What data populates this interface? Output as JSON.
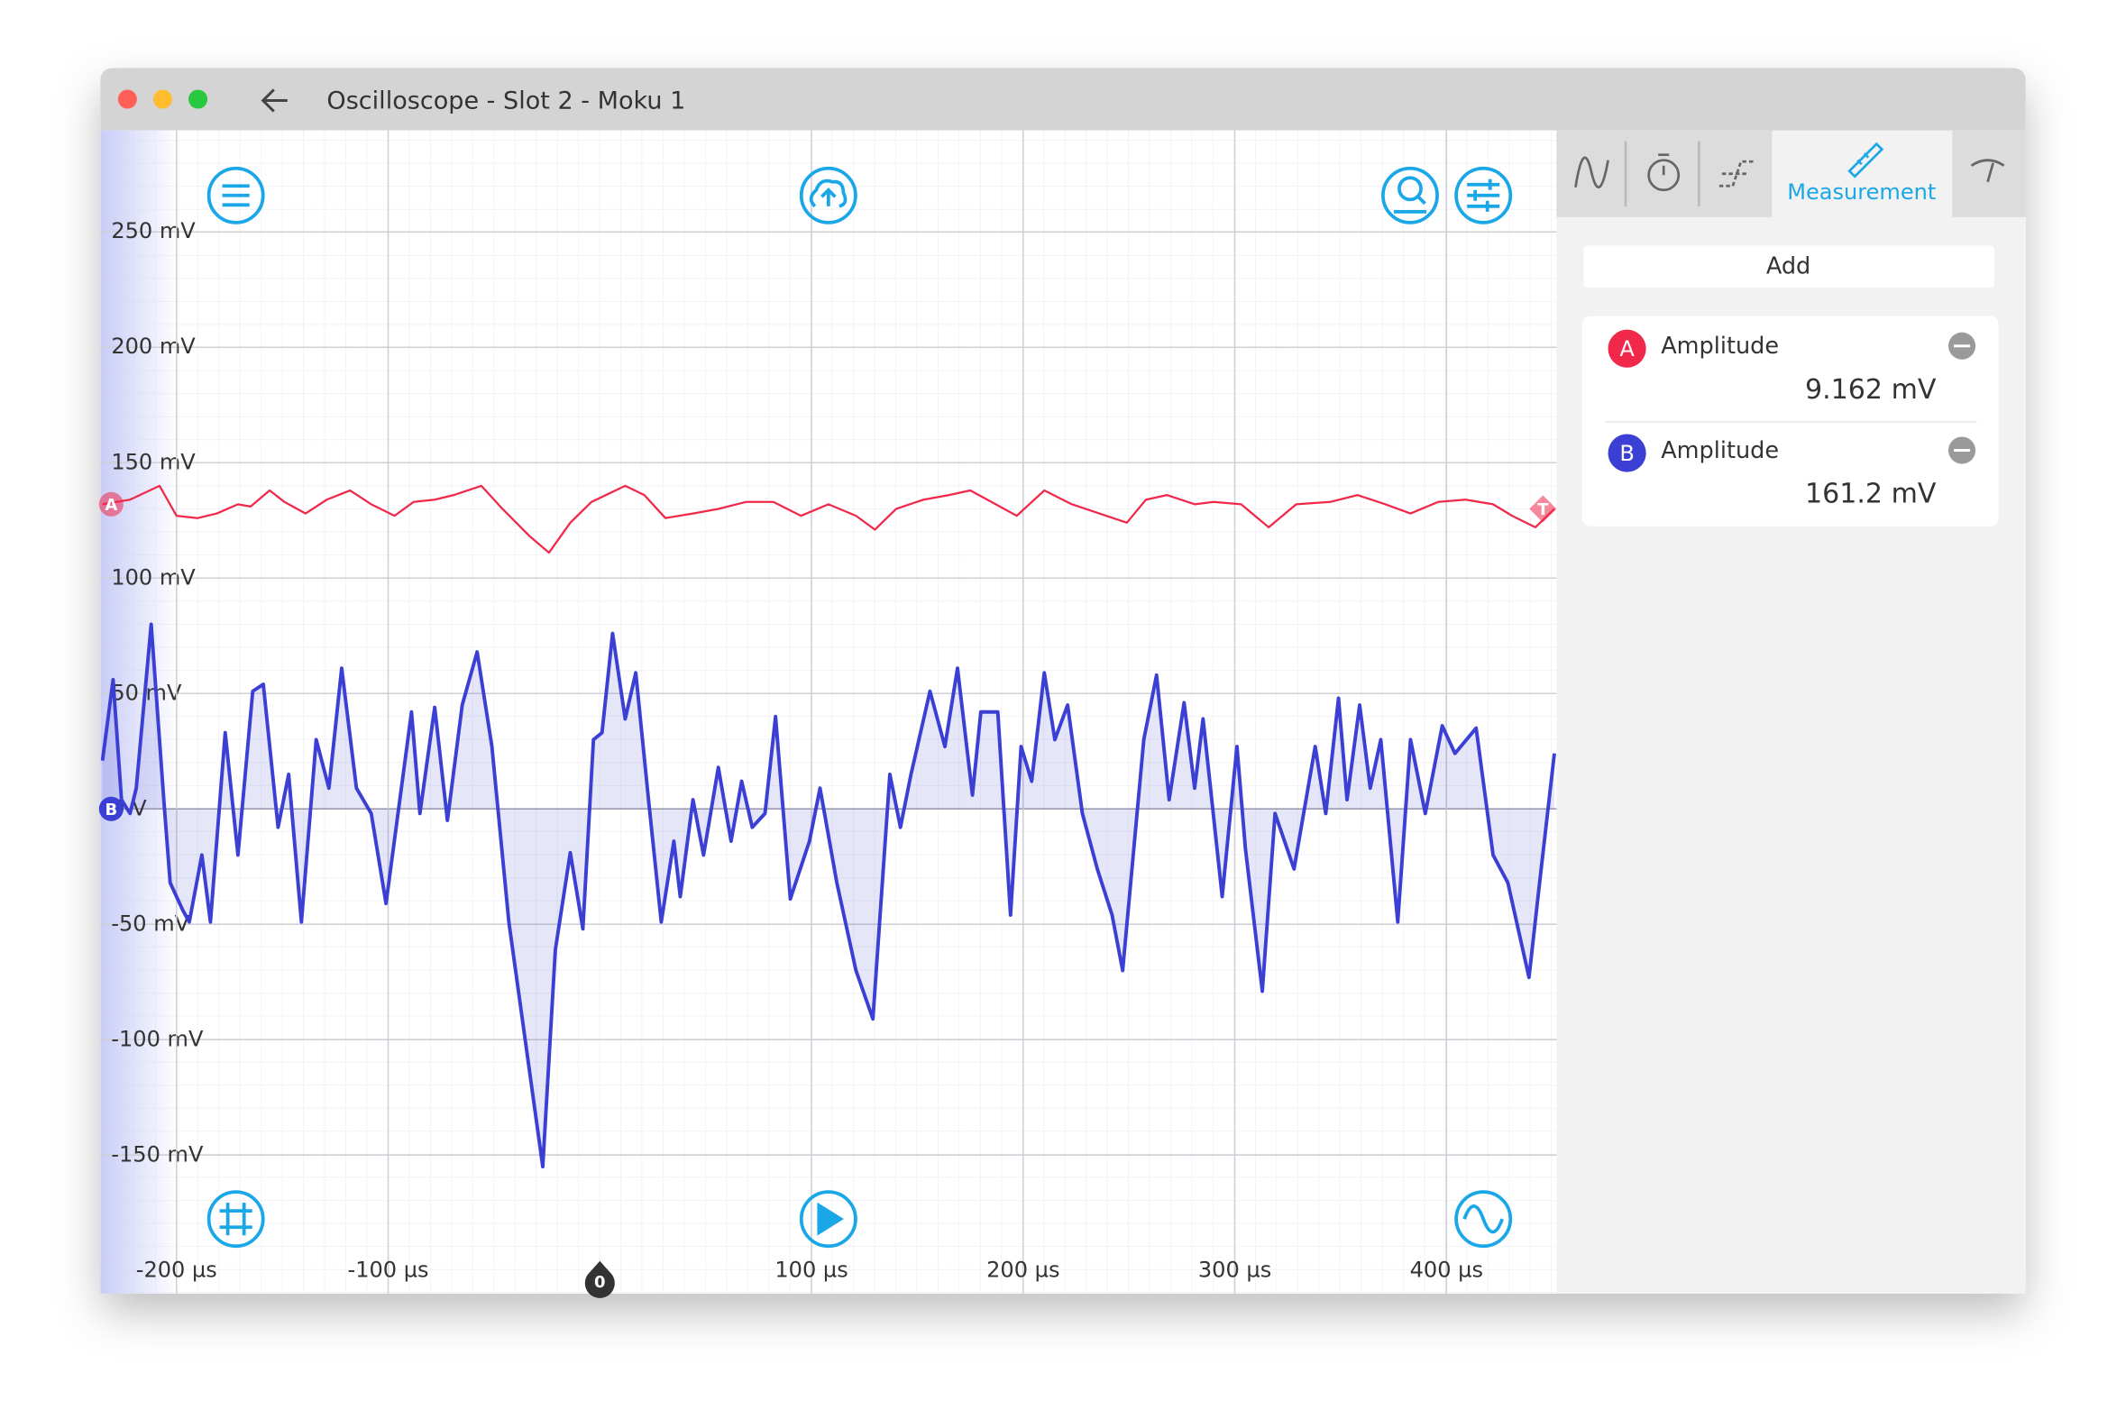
{
  "window": {
    "title": "Oscilloscope - Slot 2 - Moku 1"
  },
  "sidebar": {
    "active_tab": "Measurement",
    "add_button": "Add",
    "measurements": [
      {
        "channel": "A",
        "name": "Amplitude",
        "value": "9.162 mV"
      },
      {
        "channel": "B",
        "name": "Amplitude",
        "value": "161.2 mV"
      }
    ]
  },
  "chart_data": {
    "type": "line",
    "grid": true,
    "xlim": [
      -236,
      452
    ],
    "ylim": [
      -210,
      294
    ],
    "xticks": [
      {
        "value": -200,
        "label": "-200 µs"
      },
      {
        "value": -100,
        "label": "-100 µs"
      },
      {
        "value": 100,
        "label": "100 µs"
      },
      {
        "value": 200,
        "label": "200 µs"
      },
      {
        "value": 300,
        "label": "300 µs"
      },
      {
        "value": 400,
        "label": "400 µs"
      }
    ],
    "yticks": [
      {
        "value": -150,
        "label": "-150 mV"
      },
      {
        "value": -100,
        "label": "-100 mV"
      },
      {
        "value": -50,
        "label": "-50 mV"
      },
      {
        "value": 0,
        "label": "0 V"
      },
      {
        "value": 50,
        "label": "50 mV"
      },
      {
        "value": 100,
        "label": "100 mV"
      },
      {
        "value": 150,
        "label": "150 mV"
      },
      {
        "value": 200,
        "label": "200 mV"
      },
      {
        "value": 250,
        "label": "250 mV"
      }
    ],
    "time_origin_label": "0",
    "trigger_marker": "T",
    "series": [
      {
        "name": "A",
        "color": "#f0284a",
        "fill": false,
        "x": [
          -235,
          -222,
          -208,
          -200,
          -190,
          -181,
          -171,
          -165,
          -156,
          -149,
          -139,
          -129,
          -118,
          -108,
          -97,
          -88,
          -78,
          -69,
          -56,
          -46,
          -33,
          -24,
          -14,
          -4,
          12,
          21,
          31,
          44,
          56,
          69,
          82,
          95,
          108,
          121,
          130,
          140,
          153,
          165,
          175,
          185,
          197,
          210,
          223,
          236,
          249,
          258,
          268,
          281,
          290,
          303,
          316,
          329,
          345,
          358,
          371,
          383,
          396,
          409,
          422,
          431,
          442,
          451
        ],
        "values": [
          132,
          134,
          140,
          127,
          126,
          128,
          132,
          131,
          138,
          133,
          128,
          134,
          138,
          132,
          127,
          133,
          134,
          136,
          140,
          130,
          118,
          111,
          124,
          133,
          140,
          136,
          126,
          128,
          130,
          133,
          133,
          127,
          132,
          127,
          121,
          130,
          134,
          136,
          138,
          133,
          127,
          138,
          132,
          128,
          124,
          134,
          136,
          132,
          133,
          132,
          122,
          132,
          133,
          136,
          132,
          128,
          133,
          134,
          132,
          127,
          122,
          130
        ]
      },
      {
        "name": "B",
        "color": "#3b3fd4",
        "fill": true,
        "x": [
          -235,
          -230,
          -226,
          -222,
          -219,
          -212,
          -206,
          -203,
          -197,
          -194,
          -188,
          -184,
          -177,
          -171,
          -164,
          -159,
          -152,
          -147,
          -141,
          -134,
          -128,
          -122,
          -115,
          -108,
          -101,
          -89,
          -85,
          -78,
          -72,
          -65,
          -58,
          -51,
          -43,
          -35,
          -27,
          -21,
          -14,
          -8,
          -3,
          1,
          6,
          12,
          17,
          23,
          29,
          35,
          38,
          44,
          49,
          56,
          62,
          67,
          72,
          78,
          83,
          90,
          99,
          104,
          112,
          121,
          129,
          137,
          142,
          147,
          156,
          163,
          169,
          176,
          180,
          188,
          194,
          199,
          204,
          210,
          215,
          221,
          228,
          235,
          242,
          247,
          257,
          263,
          269,
          276,
          281,
          285,
          294,
          301,
          305,
          313,
          319,
          328,
          338,
          343,
          349,
          353,
          359,
          364,
          369,
          377,
          383,
          390,
          398,
          404,
          414,
          422,
          429,
          439,
          444,
          451
        ],
        "values": [
          21,
          56,
          4,
          -2,
          9,
          80,
          4,
          -32,
          -44,
          -49,
          -20,
          -49,
          33,
          -20,
          51,
          54,
          -8,
          15,
          -49,
          30,
          9,
          61,
          9,
          -2,
          -41,
          42,
          -2,
          44,
          -5,
          45,
          68,
          27,
          -49,
          -102,
          -155,
          -61,
          -19,
          -52,
          30,
          33,
          76,
          39,
          59,
          4,
          -49,
          -14,
          -38,
          4,
          -20,
          18,
          -14,
          12,
          -8,
          -2,
          40,
          -39,
          -14,
          9,
          -32,
          -70,
          -91,
          15,
          -8,
          15,
          51,
          27,
          61,
          6,
          42,
          42,
          -46,
          27,
          12,
          59,
          30,
          45,
          -2,
          -26,
          -46,
          -70,
          30,
          58,
          4,
          46,
          9,
          39,
          -38,
          27,
          -17,
          -79,
          -2,
          -26,
          27,
          -2,
          48,
          4,
          45,
          9,
          30,
          -49,
          30,
          -2,
          36,
          24,
          35,
          -20,
          -32,
          -73,
          -32,
          24
        ]
      }
    ]
  }
}
